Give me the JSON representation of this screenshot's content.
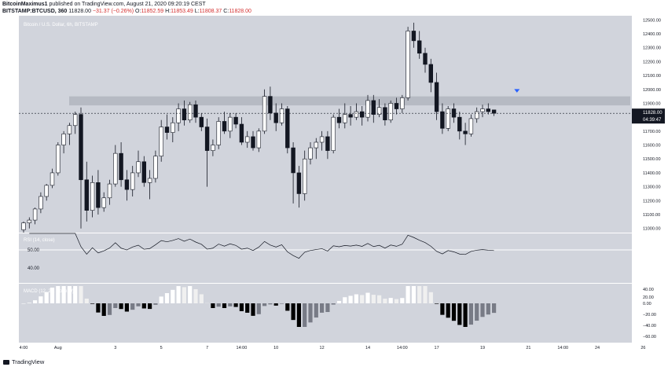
{
  "header": {
    "author": "BitcoinMaximus1",
    "published_text": "published on TradingView.com, August 21, 2020 09:20:19 CEST",
    "symbol": "BITSTAMP:BTCUSD, 360",
    "last_price": "11828.00",
    "change": "−31.37 (−0.26%)",
    "o_label": "O:",
    "o_value": "11852.59",
    "h_label": "H:",
    "h_value": "11853.49",
    "l_label": "L:",
    "l_value": "11808.37",
    "c_label": "C:",
    "c_value": "11828.00"
  },
  "price_pane": {
    "watermark": "Bitcoin / U.S. Dollar, 6h, BITSTAMP",
    "current_price_label": "11828.00",
    "countdown_label": "04:39:47"
  },
  "rsi_pane": {
    "label": "RSI (14, close)",
    "level_label": "50.00",
    "low_label": "40.00"
  },
  "macd_pane": {
    "label": "MACD (12, 26, close, 9)"
  },
  "x_axis": {
    "ticks": [
      {
        "label": "4:00",
        "i": 0
      },
      {
        "label": "Aug",
        "i": 6
      },
      {
        "label": "3",
        "i": 16
      },
      {
        "label": "5",
        "i": 24
      },
      {
        "label": "7",
        "i": 32
      },
      {
        "label": "14:00",
        "i": 38
      },
      {
        "label": "10",
        "i": 44
      },
      {
        "label": "12",
        "i": 52
      },
      {
        "label": "14",
        "i": 60
      },
      {
        "label": "14:00",
        "i": 66
      },
      {
        "label": "17",
        "i": 72
      },
      {
        "label": "19",
        "i": 80
      },
      {
        "label": "21",
        "i": 88
      },
      {
        "label": "14:00",
        "i": 94
      },
      {
        "label": "24",
        "i": 100
      },
      {
        "label": "26",
        "i": 108
      }
    ]
  },
  "footer": {
    "logo_text": "TradingView"
  },
  "chart_data": {
    "type": "candlestick",
    "title": "Bitcoin / U.S. Dollar, 6h, BITSTAMP",
    "y_axis_ticks": [
      11000,
      11100,
      11200,
      11300,
      11400,
      11500,
      11600,
      11700,
      11800,
      11900,
      12000,
      12100,
      12200,
      12300,
      12400,
      12500
    ],
    "ylim": [
      10970,
      12530
    ],
    "resistance_zone": [
      11885,
      11950
    ],
    "marker": {
      "type": "arrow-down",
      "color": "#2962ff",
      "at_index": 86,
      "price": 11985
    },
    "colors": {
      "up": "#ffffff",
      "down": "#131722",
      "pane_bg": "#d1d4dc",
      "zone": "#b2b5be"
    },
    "ohlc": [
      [
        10990,
        11050,
        10970,
        11040
      ],
      [
        11040,
        11080,
        11000,
        11060
      ],
      [
        11060,
        11150,
        11030,
        11140
      ],
      [
        11140,
        11260,
        11110,
        11230
      ],
      [
        11230,
        11320,
        11200,
        11310
      ],
      [
        11310,
        11430,
        11290,
        11400
      ],
      [
        11400,
        11620,
        11380,
        11600
      ],
      [
        11600,
        11700,
        11540,
        11680
      ],
      [
        11680,
        11760,
        11600,
        11740
      ],
      [
        11740,
        11840,
        11680,
        11820
      ],
      [
        11820,
        11870,
        11000,
        11350
      ],
      [
        11350,
        11480,
        11050,
        11130
      ],
      [
        11130,
        11380,
        11080,
        11330
      ],
      [
        11330,
        11420,
        11100,
        11150
      ],
      [
        11150,
        11260,
        11120,
        11220
      ],
      [
        11220,
        11350,
        11170,
        11320
      ],
      [
        11320,
        11600,
        11300,
        11540
      ],
      [
        11540,
        11620,
        11300,
        11350
      ],
      [
        11350,
        11420,
        11200,
        11280
      ],
      [
        11280,
        11450,
        11230,
        11400
      ],
      [
        11400,
        11560,
        11370,
        11480
      ],
      [
        11480,
        11520,
        11300,
        11330
      ],
      [
        11330,
        11420,
        11210,
        11360
      ],
      [
        11360,
        11560,
        11330,
        11520
      ],
      [
        11520,
        11780,
        11480,
        11730
      ],
      [
        11730,
        11820,
        11640,
        11690
      ],
      [
        11690,
        11800,
        11620,
        11760
      ],
      [
        11760,
        11900,
        11700,
        11860
      ],
      [
        11860,
        11920,
        11740,
        11780
      ],
      [
        11780,
        11910,
        11760,
        11890
      ],
      [
        11890,
        11920,
        11760,
        11800
      ],
      [
        11800,
        11830,
        11700,
        11730
      ],
      [
        11730,
        11790,
        11300,
        11560
      ],
      [
        11560,
        11640,
        11520,
        11600
      ],
      [
        11600,
        11800,
        11570,
        11770
      ],
      [
        11770,
        11840,
        11680,
        11700
      ],
      [
        11700,
        11830,
        11650,
        11800
      ],
      [
        11800,
        11830,
        11720,
        11750
      ],
      [
        11750,
        11800,
        11600,
        11620
      ],
      [
        11620,
        11700,
        11580,
        11660
      ],
      [
        11660,
        11700,
        11560,
        11580
      ],
      [
        11580,
        11720,
        11550,
        11700
      ],
      [
        11700,
        12000,
        11680,
        11950
      ],
      [
        11950,
        12020,
        11780,
        11830
      ],
      [
        11830,
        11900,
        11700,
        11760
      ],
      [
        11760,
        11900,
        11740,
        11860
      ],
      [
        11860,
        11880,
        11540,
        11580
      ],
      [
        11580,
        11620,
        11180,
        11400
      ],
      [
        11400,
        11450,
        11150,
        11250
      ],
      [
        11250,
        11560,
        11200,
        11500
      ],
      [
        11500,
        11620,
        11460,
        11580
      ],
      [
        11580,
        11650,
        11500,
        11620
      ],
      [
        11620,
        11700,
        11560,
        11660
      ],
      [
        11660,
        11700,
        11500,
        11560
      ],
      [
        11560,
        11820,
        11540,
        11800
      ],
      [
        11800,
        11860,
        11720,
        11760
      ],
      [
        11760,
        11900,
        11720,
        11820
      ],
      [
        11820,
        11880,
        11740,
        11800
      ],
      [
        11800,
        11900,
        11780,
        11840
      ],
      [
        11840,
        11880,
        11740,
        11800
      ],
      [
        11800,
        11960,
        11770,
        11920
      ],
      [
        11920,
        11960,
        11760,
        11820
      ],
      [
        11820,
        11930,
        11800,
        11870
      ],
      [
        11870,
        11900,
        11740,
        11780
      ],
      [
        11780,
        11920,
        11760,
        11900
      ],
      [
        11900,
        11940,
        11820,
        11860
      ],
      [
        11860,
        11960,
        11830,
        11940
      ],
      [
        11940,
        12450,
        11920,
        12420
      ],
      [
        12420,
        12480,
        12300,
        12350
      ],
      [
        12350,
        12420,
        12220,
        12260
      ],
      [
        12260,
        12300,
        12120,
        12180
      ],
      [
        12180,
        12220,
        11980,
        12050
      ],
      [
        12050,
        12120,
        11780,
        11840
      ],
      [
        11840,
        11900,
        11680,
        11720
      ],
      [
        11720,
        11880,
        11700,
        11860
      ],
      [
        11860,
        11900,
        11760,
        11800
      ],
      [
        11800,
        11840,
        11640,
        11700
      ],
      [
        11700,
        11760,
        11600,
        11680
      ],
      [
        11680,
        11820,
        11660,
        11790
      ],
      [
        11790,
        11870,
        11760,
        11840
      ],
      [
        11840,
        11890,
        11800,
        11860
      ],
      [
        11860,
        11900,
        11820,
        11840
      ],
      [
        11852.59,
        11853.49,
        11808.37,
        11828.0
      ]
    ]
  }
}
